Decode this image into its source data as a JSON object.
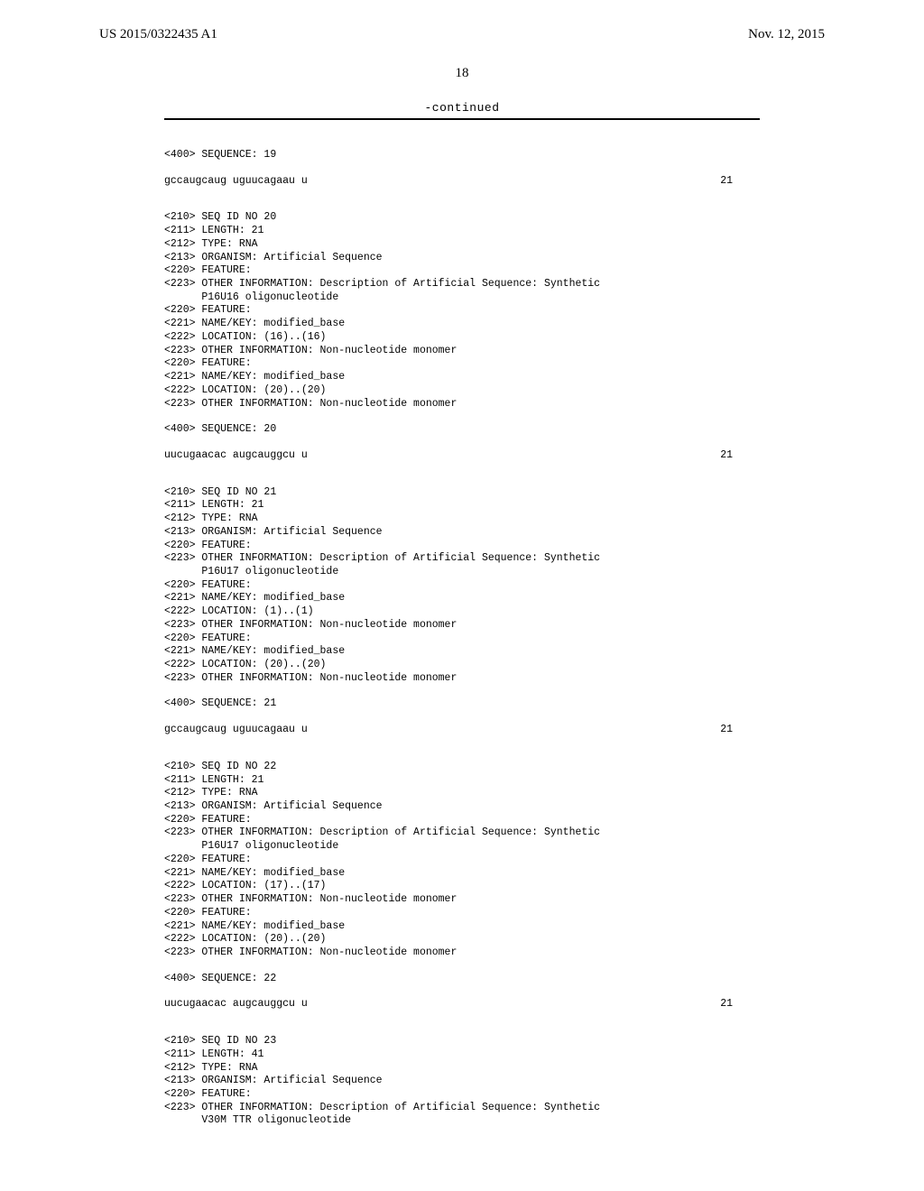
{
  "header": {
    "pub_number": "US 2015/0322435 A1",
    "pub_date": "Nov. 12, 2015"
  },
  "page_number": "18",
  "continued_label": "-continued",
  "sequences": [
    {
      "header_lines": [
        "<400> SEQUENCE: 19"
      ],
      "data": {
        "seq": "gccaugcaug uguucagaau u",
        "len": "21"
      }
    },
    {
      "header_lines": [
        "<210> SEQ ID NO 20",
        "<211> LENGTH: 21",
        "<212> TYPE: RNA",
        "<213> ORGANISM: Artificial Sequence",
        "<220> FEATURE:",
        "<223> OTHER INFORMATION: Description of Artificial Sequence: Synthetic",
        "      P16U16 oligonucleotide",
        "<220> FEATURE:",
        "<221> NAME/KEY: modified_base",
        "<222> LOCATION: (16)..(16)",
        "<223> OTHER INFORMATION: Non-nucleotide monomer",
        "<220> FEATURE:",
        "<221> NAME/KEY: modified_base",
        "<222> LOCATION: (20)..(20)",
        "<223> OTHER INFORMATION: Non-nucleotide monomer",
        "",
        "<400> SEQUENCE: 20"
      ],
      "data": {
        "seq": "uucugaacac augcauggcu u",
        "len": "21"
      }
    },
    {
      "header_lines": [
        "<210> SEQ ID NO 21",
        "<211> LENGTH: 21",
        "<212> TYPE: RNA",
        "<213> ORGANISM: Artificial Sequence",
        "<220> FEATURE:",
        "<223> OTHER INFORMATION: Description of Artificial Sequence: Synthetic",
        "      P16U17 oligonucleotide",
        "<220> FEATURE:",
        "<221> NAME/KEY: modified_base",
        "<222> LOCATION: (1)..(1)",
        "<223> OTHER INFORMATION: Non-nucleotide monomer",
        "<220> FEATURE:",
        "<221> NAME/KEY: modified_base",
        "<222> LOCATION: (20)..(20)",
        "<223> OTHER INFORMATION: Non-nucleotide monomer",
        "",
        "<400> SEQUENCE: 21"
      ],
      "data": {
        "seq": "gccaugcaug uguucagaau u",
        "len": "21"
      }
    },
    {
      "header_lines": [
        "<210> SEQ ID NO 22",
        "<211> LENGTH: 21",
        "<212> TYPE: RNA",
        "<213> ORGANISM: Artificial Sequence",
        "<220> FEATURE:",
        "<223> OTHER INFORMATION: Description of Artificial Sequence: Synthetic",
        "      P16U17 oligonucleotide",
        "<220> FEATURE:",
        "<221> NAME/KEY: modified_base",
        "<222> LOCATION: (17)..(17)",
        "<223> OTHER INFORMATION: Non-nucleotide monomer",
        "<220> FEATURE:",
        "<221> NAME/KEY: modified_base",
        "<222> LOCATION: (20)..(20)",
        "<223> OTHER INFORMATION: Non-nucleotide monomer",
        "",
        "<400> SEQUENCE: 22"
      ],
      "data": {
        "seq": "uucugaacac augcauggcu u",
        "len": "21"
      }
    },
    {
      "header_lines": [
        "<210> SEQ ID NO 23",
        "<211> LENGTH: 41",
        "<212> TYPE: RNA",
        "<213> ORGANISM: Artificial Sequence",
        "<220> FEATURE:",
        "<223> OTHER INFORMATION: Description of Artificial Sequence: Synthetic",
        "      V30M TTR oligonucleotide"
      ],
      "data": null
    }
  ]
}
